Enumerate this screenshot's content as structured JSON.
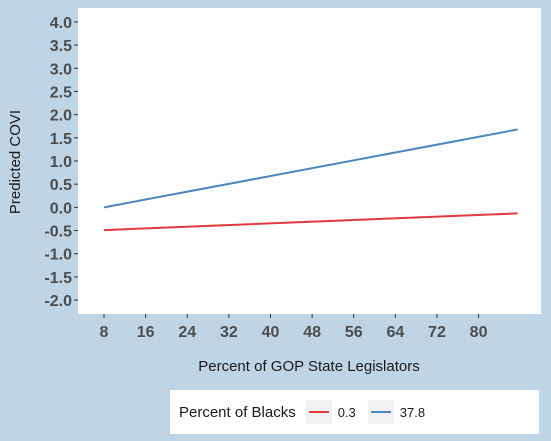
{
  "colors": {
    "background": "#bfd5e6",
    "panel": "#ffffff",
    "series_0_3": "#e0393e",
    "series_37_8": "#4a86c0"
  },
  "chart_data": {
    "type": "line",
    "xlabel": "Percent of GOP State Legislators",
    "ylabel": "Predicted COVI",
    "xlim": [
      3,
      92
    ],
    "ylim": [
      -2.3,
      4.3
    ],
    "x_ticks": [
      8,
      16,
      24,
      32,
      40,
      48,
      56,
      64,
      72,
      80
    ],
    "x_tick_labels": [
      "8",
      "16",
      "24",
      "32",
      "40",
      "48",
      "56",
      "64",
      "72",
      "80"
    ],
    "y_ticks": [
      4.0,
      3.5,
      3.0,
      2.5,
      2.0,
      1.5,
      1.0,
      0.5,
      0.0,
      -0.5,
      -1.0,
      -1.5,
      -2.0
    ],
    "y_tick_labels": [
      "4.0",
      "3.5",
      "3.0",
      "2.5",
      "2.0",
      "1.5",
      "1.0",
      "0.5",
      "0.0",
      "-0.5",
      "-1.0",
      "-1.5",
      "-2.0"
    ],
    "grid": false,
    "legend": {
      "title": "Percent of Blacks",
      "position": "bottom"
    },
    "series": [
      {
        "name": "0.3",
        "x": [
          8,
          87.5
        ],
        "y": [
          -0.49,
          -0.13
        ],
        "color": "#e0393e"
      },
      {
        "name": "37.8",
        "x": [
          8,
          87.5
        ],
        "y": [
          0.0,
          1.68
        ],
        "color": "#4a86c0"
      }
    ]
  }
}
